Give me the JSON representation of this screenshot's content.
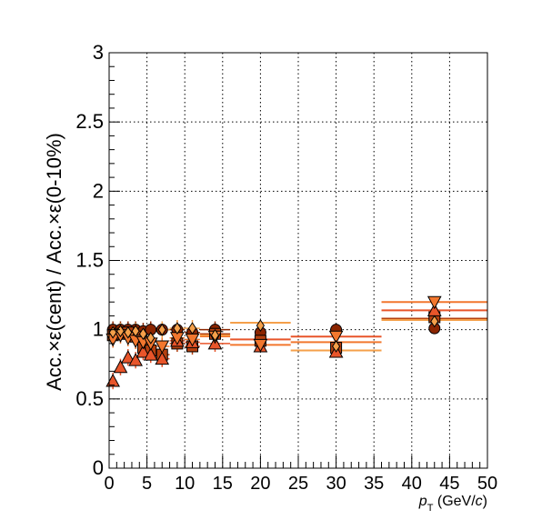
{
  "chart_data": {
    "type": "scatter",
    "title": "",
    "xlabel_prefix": "p",
    "xlabel_sub": "T",
    "xlabel_unit": " (GeV/",
    "xlabel_c": "c",
    "xlabel_close": ")",
    "ylabel": "Acc.×ε(cent) / Acc.×ε(0-10%)",
    "xlim": [
      0,
      50
    ],
    "ylim": [
      0,
      3
    ],
    "grid": true,
    "legend": "none",
    "x_ticks": [
      0,
      5,
      10,
      15,
      20,
      25,
      30,
      35,
      40,
      45,
      50
    ],
    "x_tick_labels": [
      "0",
      "5",
      "10",
      "15",
      "20",
      "25",
      "30",
      "35",
      "40",
      "45",
      "50"
    ],
    "y_ticks": [
      0,
      0.5,
      1,
      1.5,
      2,
      2.5,
      3
    ],
    "y_tick_labels": [
      "0",
      "0.5",
      "1",
      "1.5",
      "2",
      "2.5",
      "3"
    ],
    "series": [
      {
        "marker": "circle",
        "color": "#8b2500",
        "points": [
          {
            "x": 0.5,
            "y": 1.0
          },
          {
            "x": 1.5,
            "y": 1.0
          },
          {
            "x": 2.5,
            "y": 1.0
          },
          {
            "x": 3.5,
            "y": 1.0
          },
          {
            "x": 4.5,
            "y": 0.99
          },
          {
            "x": 5.5,
            "y": 1.0
          },
          {
            "x": 7.0,
            "y": 1.0
          },
          {
            "x": 9.0,
            "y": 1.0
          },
          {
            "x": 11.0,
            "y": 0.98
          },
          {
            "x": 14.0,
            "y": 1.0
          },
          {
            "x": 20.0,
            "y": 0.98
          },
          {
            "x": 30.0,
            "y": 1.0
          },
          {
            "x": 43.0,
            "y": 1.01
          }
        ]
      },
      {
        "marker": "square",
        "color": "#b5400f",
        "points": [
          {
            "x": 0.5,
            "y": 0.96
          },
          {
            "x": 1.5,
            "y": 0.97
          },
          {
            "x": 2.5,
            "y": 0.98
          },
          {
            "x": 3.5,
            "y": 0.95
          },
          {
            "x": 4.5,
            "y": 0.87
          },
          {
            "x": 5.5,
            "y": 0.85
          },
          {
            "x": 7.0,
            "y": 0.82
          },
          {
            "x": 9.0,
            "y": 0.9
          },
          {
            "x": 11.0,
            "y": 0.88
          },
          {
            "x": 14.0,
            "y": 0.97
          },
          {
            "x": 20.0,
            "y": 0.92
          },
          {
            "x": 30.0,
            "y": 0.87
          },
          {
            "x": 43.0,
            "y": 1.09
          }
        ]
      },
      {
        "marker": "triangle-up",
        "color": "#e8552a",
        "points": [
          {
            "x": 0.5,
            "y": 0.63
          },
          {
            "x": 1.5,
            "y": 0.73
          },
          {
            "x": 2.5,
            "y": 0.8
          },
          {
            "x": 3.5,
            "y": 0.78
          },
          {
            "x": 4.5,
            "y": 0.84
          },
          {
            "x": 5.5,
            "y": 0.82
          },
          {
            "x": 7.0,
            "y": 0.79
          },
          {
            "x": 9.0,
            "y": 0.92
          },
          {
            "x": 11.0,
            "y": 0.91
          },
          {
            "x": 14.0,
            "y": 0.9
          },
          {
            "x": 20.0,
            "y": 0.88
          },
          {
            "x": 30.0,
            "y": 0.84
          },
          {
            "x": 43.0,
            "y": 1.14
          }
        ]
      },
      {
        "marker": "triangle-down",
        "color": "#f2772e",
        "points": [
          {
            "x": 0.5,
            "y": 0.93
          },
          {
            "x": 1.5,
            "y": 0.96
          },
          {
            "x": 2.5,
            "y": 0.94
          },
          {
            "x": 3.5,
            "y": 0.92
          },
          {
            "x": 4.5,
            "y": 0.91
          },
          {
            "x": 5.5,
            "y": 0.9
          },
          {
            "x": 7.0,
            "y": 0.88
          },
          {
            "x": 9.0,
            "y": 0.94
          },
          {
            "x": 11.0,
            "y": 0.93
          },
          {
            "x": 14.0,
            "y": 0.95
          },
          {
            "x": 20.0,
            "y": 0.89
          },
          {
            "x": 30.0,
            "y": 0.95
          },
          {
            "x": 43.0,
            "y": 1.2
          }
        ]
      },
      {
        "marker": "diamond",
        "color": "#f5a04a",
        "points": [
          {
            "x": 0.5,
            "y": 0.98
          },
          {
            "x": 1.5,
            "y": 0.99
          },
          {
            "x": 2.5,
            "y": 0.98
          },
          {
            "x": 3.5,
            "y": 0.99
          },
          {
            "x": 4.5,
            "y": 0.97
          },
          {
            "x": 5.5,
            "y": 0.94
          },
          {
            "x": 7.0,
            "y": 1.0
          },
          {
            "x": 9.0,
            "y": 1.01
          },
          {
            "x": 11.0,
            "y": 1.01
          },
          {
            "x": 14.0,
            "y": 0.96
          },
          {
            "x": 20.0,
            "y": 1.03
          },
          {
            "x": 30.0,
            "y": 0.88
          },
          {
            "x": 43.0,
            "y": 1.06
          }
        ]
      }
    ],
    "bins": [
      [
        0,
        1
      ],
      [
        1,
        2
      ],
      [
        2,
        3
      ],
      [
        3,
        4
      ],
      [
        4,
        5
      ],
      [
        5,
        6
      ],
      [
        6,
        8
      ],
      [
        8,
        10
      ],
      [
        10,
        12
      ],
      [
        12,
        16
      ],
      [
        16,
        24
      ],
      [
        24,
        36
      ],
      [
        36,
        50
      ]
    ],
    "wide_bin_lines": [
      {
        "xmin": 16,
        "xmax": 24,
        "y": 1.05,
        "color": "#f5a04a"
      },
      {
        "xmin": 16,
        "xmax": 24,
        "y": 0.93,
        "color": "#e8552a"
      },
      {
        "xmin": 16,
        "xmax": 24,
        "y": 0.89,
        "color": "#f2772e"
      },
      {
        "xmin": 24,
        "xmax": 36,
        "y": 0.95,
        "color": "#e8552a"
      },
      {
        "xmin": 24,
        "xmax": 36,
        "y": 0.91,
        "color": "#f2772e"
      },
      {
        "xmin": 24,
        "xmax": 36,
        "y": 0.85,
        "color": "#f5a04a"
      },
      {
        "xmin": 36,
        "xmax": 50,
        "y": 1.2,
        "color": "#f2772e"
      },
      {
        "xmin": 36,
        "xmax": 50,
        "y": 1.14,
        "color": "#e8552a"
      },
      {
        "xmin": 36,
        "xmax": 50,
        "y": 1.08,
        "color": "#b5400f"
      },
      {
        "xmin": 36,
        "xmax": 50,
        "y": 1.07,
        "color": "#f5a04a"
      }
    ]
  }
}
